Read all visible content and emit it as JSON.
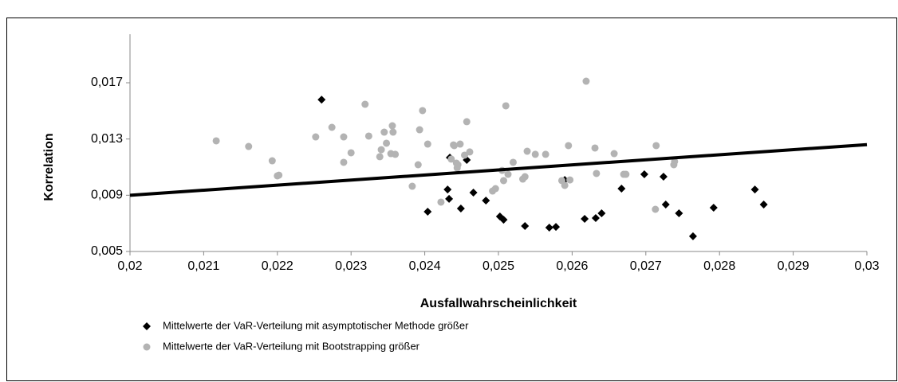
{
  "chart_data": {
    "type": "scatter",
    "xlabel": "Ausfallwahrscheinlichkeit",
    "ylabel": "Korrelation",
    "xlim": [
      0.02,
      0.03
    ],
    "ylim": [
      0.005,
      0.02
    ],
    "xticks": [
      {
        "value": 0.02,
        "label": "0,02"
      },
      {
        "value": 0.021,
        "label": "0,021"
      },
      {
        "value": 0.022,
        "label": "0,022"
      },
      {
        "value": 0.023,
        "label": "0,023"
      },
      {
        "value": 0.024,
        "label": "0,024"
      },
      {
        "value": 0.025,
        "label": "0,025"
      },
      {
        "value": 0.026,
        "label": "0,026"
      },
      {
        "value": 0.027,
        "label": "0,027"
      },
      {
        "value": 0.028,
        "label": "0,028"
      },
      {
        "value": 0.029,
        "label": "0,029"
      },
      {
        "value": 0.03,
        "label": "0,03"
      }
    ],
    "yticks": [
      {
        "value": 0.005,
        "label": "0,005"
      },
      {
        "value": 0.009,
        "label": "0,009"
      },
      {
        "value": 0.013,
        "label": "0,013"
      },
      {
        "value": 0.017,
        "label": "0,017"
      }
    ],
    "grid": false,
    "series": [
      {
        "name": "Mittelwerte der VaR-Verteilung mit asymptotischer Methode größer",
        "color": "#000000",
        "marker": "diamond",
        "x": [
          0.0226,
          0.02404,
          0.02431,
          0.02433,
          0.02434,
          0.02449,
          0.02457,
          0.02466,
          0.02483,
          0.02502,
          0.02507,
          0.02536,
          0.02569,
          0.02578,
          0.0259,
          0.02617,
          0.02632,
          0.0264,
          0.02667,
          0.02698,
          0.02724,
          0.02727,
          0.02745,
          0.02764,
          0.02792,
          0.02848,
          0.0286
        ],
        "values": [
          0.0158,
          0.00783,
          0.00941,
          0.00874,
          0.01168,
          0.00806,
          0.01151,
          0.00919,
          0.00862,
          0.00749,
          0.00726,
          0.00681,
          0.0067,
          0.00675,
          0.01009,
          0.00732,
          0.00738,
          0.00772,
          0.00947,
          0.01049,
          0.01032,
          0.00834,
          0.00772,
          0.00608,
          0.00811,
          0.00941,
          0.00834
        ]
      },
      {
        "name": "Mittelwerte der VaR-Verteilung mit Bootstrapping größer",
        "color": "#b3b3b3",
        "marker": "circle",
        "x": [
          0.02117,
          0.02161,
          0.02193,
          0.022,
          0.02202,
          0.02252,
          0.02274,
          0.0229,
          0.0229,
          0.023,
          0.02319,
          0.02324,
          0.02339,
          0.02341,
          0.02345,
          0.02348,
          0.02354,
          0.02356,
          0.02357,
          0.0236,
          0.02383,
          0.02391,
          0.02393,
          0.02397,
          0.02404,
          0.02422,
          0.02436,
          0.02439,
          0.0244,
          0.02443,
          0.02444,
          0.02445,
          0.02448,
          0.02454,
          0.02457,
          0.02461,
          0.02492,
          0.02496,
          0.02505,
          0.02507,
          0.0251,
          0.02513,
          0.0252,
          0.02533,
          0.02536,
          0.02539,
          0.0255,
          0.02564,
          0.02586,
          0.0259,
          0.02595,
          0.02597,
          0.02619,
          0.02631,
          0.02633,
          0.02657,
          0.0267,
          0.02673,
          0.02713,
          0.02714,
          0.02738,
          0.02739
        ],
        "values": [
          0.01287,
          0.01247,
          0.01145,
          0.01038,
          0.01043,
          0.01315,
          0.01383,
          0.01315,
          0.01134,
          0.01202,
          0.01547,
          0.01321,
          0.01174,
          0.01224,
          0.01349,
          0.0127,
          0.01196,
          0.01394,
          0.01349,
          0.01191,
          0.00964,
          0.01117,
          0.01366,
          0.01502,
          0.01264,
          0.00851,
          0.01157,
          0.01258,
          0.01253,
          0.01128,
          0.01094,
          0.01117,
          0.01264,
          0.01185,
          0.01423,
          0.01208,
          0.0093,
          0.00947,
          0.01077,
          0.01004,
          0.01536,
          0.01049,
          0.01134,
          0.01015,
          0.01032,
          0.01213,
          0.01191,
          0.01191,
          0.01004,
          0.0097,
          0.01253,
          0.01009,
          0.01711,
          0.01236,
          0.01055,
          0.01196,
          0.01049,
          0.01049,
          0.008,
          0.01253,
          0.01117,
          0.0114
        ]
      }
    ],
    "trendline": {
      "x": [
        0.02,
        0.03
      ],
      "y": [
        0.009,
        0.0126
      ],
      "color": "#000000"
    }
  }
}
